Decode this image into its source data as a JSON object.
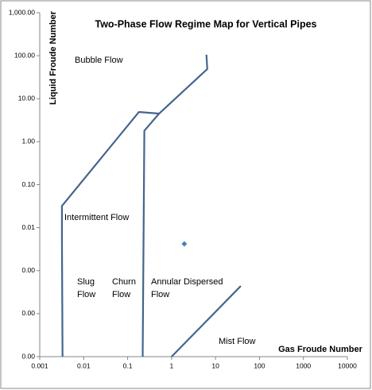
{
  "chart_data": {
    "type": "line",
    "title": "Two-Phase Flow Regime Map for Vertical Pipes",
    "x_label": "Gas Froude Number",
    "y_label": "Liquid Froude Number",
    "log_x": true,
    "log_y": true,
    "xlim": [
      0.001,
      10000
    ],
    "ylim": [
      1e-05,
      1000
    ],
    "xticks": [
      0.001,
      0.01,
      0.1,
      1,
      10,
      100,
      1000,
      10000
    ],
    "yticks": [
      {
        "value": 1000,
        "label": "1,000.00"
      },
      {
        "value": 100,
        "label": "100.00"
      },
      {
        "value": 10,
        "label": "10.00"
      },
      {
        "value": 1,
        "label": "1.00"
      },
      {
        "value": 0.1,
        "label": "0.10"
      },
      {
        "value": 0.01,
        "label": "0.01"
      },
      {
        "value": 0.001,
        "label": "0.00"
      },
      {
        "value": 0.0001,
        "label": "0.00"
      },
      {
        "value": 1e-05,
        "label": "0.00"
      }
    ],
    "series": [
      {
        "color": "#44658d",
        "x": [
          0.0033,
          0.0032,
          0.0032,
          0.18,
          0.52,
          6.5,
          6.2
        ],
        "values": [
          1e-05,
          0.0056,
          0.032,
          4.9,
          4.5,
          49,
          105
        ]
      },
      {
        "color": "#44658d",
        "x": [
          0.22,
          0.24,
          0.52
        ],
        "values": [
          1e-05,
          1.8,
          4.5
        ]
      },
      {
        "color": "#44658d",
        "x": [
          1.0,
          37.6
        ],
        "values": [
          1e-05,
          0.00044
        ]
      },
      {
        "color": "#4a7fb5",
        "marker": "diamond",
        "x": [
          1.95
        ],
        "values": [
          0.0042
        ]
      }
    ],
    "annotations": [
      [
        "Bubble Flow"
      ],
      [
        "Intermittent Flow"
      ],
      [
        "Slug",
        "Flow"
      ],
      [
        "Churn",
        "Flow"
      ],
      [
        "Annular Dispersed",
        "Flow"
      ],
      [
        "Mist Flow"
      ]
    ]
  }
}
